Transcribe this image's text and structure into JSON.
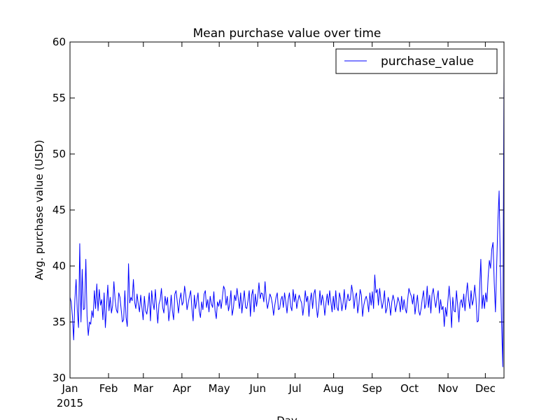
{
  "chart_data": {
    "type": "line",
    "title": "Mean purchase value over time",
    "xlabel": "Day",
    "ylabel": "Avg. purchase value (USD)",
    "x_start": "2015-01-01",
    "x_end": "2015-12-16",
    "xlim": [
      "2015-01-01",
      "2015-12-16"
    ],
    "ylim": [
      30,
      60
    ],
    "yticks": [
      "30",
      "35",
      "40",
      "45",
      "50",
      "55",
      "60"
    ],
    "xticks": [
      {
        "date": "2015-01-01",
        "label": "Jan"
      },
      {
        "date": "2015-02-01",
        "label": "Feb"
      },
      {
        "date": "2015-03-01",
        "label": "Mar"
      },
      {
        "date": "2015-04-01",
        "label": "Apr"
      },
      {
        "date": "2015-05-01",
        "label": "May"
      },
      {
        "date": "2015-06-01",
        "label": "Jun"
      },
      {
        "date": "2015-07-01",
        "label": "Jul"
      },
      {
        "date": "2015-08-01",
        "label": "Aug"
      },
      {
        "date": "2015-09-01",
        "label": "Sep"
      },
      {
        "date": "2015-10-01",
        "label": "Oct"
      },
      {
        "date": "2015-11-01",
        "label": "Nov"
      },
      {
        "date": "2015-12-01",
        "label": "Dec"
      }
    ],
    "year_label": "2015",
    "grid": false,
    "legend_position": "top-right",
    "series": [
      {
        "name": "purchase_value",
        "color": "#0000ff",
        "values": [
          37.2,
          36.8,
          35.5,
          33.4,
          37.0,
          38.8,
          36.0,
          34.5,
          42.0,
          35.0,
          39.7,
          36.1,
          36.2,
          40.6,
          35.5,
          33.8,
          35.0,
          34.8,
          36.0,
          35.4,
          37.8,
          36.2,
          38.4,
          36.0,
          37.9,
          36.5,
          37.0,
          35.2,
          37.6,
          34.5,
          36.4,
          38.3,
          36.0,
          37.2,
          35.8,
          36.5,
          38.6,
          37.0,
          36.1,
          35.8,
          37.6,
          37.2,
          36.1,
          35.0,
          35.2,
          37.8,
          35.4,
          34.6,
          40.2,
          36.7,
          37.2,
          36.9,
          38.8,
          36.8,
          36.2,
          37.5,
          36.6,
          35.9,
          37.4,
          36.3,
          35.2,
          37.3,
          36.0,
          35.7,
          36.5,
          37.6,
          35.1,
          37.8,
          36.7,
          36.1,
          37.9,
          36.3,
          34.9,
          36.6,
          37.0,
          38.0,
          36.3,
          35.8,
          37.3,
          36.5,
          37.2,
          35.1,
          36.0,
          37.4,
          36.0,
          35.2,
          37.5,
          37.8,
          36.8,
          35.8,
          37.0,
          37.6,
          36.5,
          36.8,
          38.2,
          37.4,
          36.1,
          36.7,
          37.3,
          37.8,
          36.2,
          35.1,
          37.4,
          36.2,
          36.9,
          37.6,
          36.0,
          35.4,
          36.8,
          36.1,
          37.5,
          37.8,
          36.3,
          37.0,
          35.9,
          37.3,
          36.6,
          36.3,
          37.7,
          36.0,
          35.3,
          36.8,
          36.4,
          37.0,
          36.2,
          37.2,
          38.2,
          37.9,
          36.5,
          37.3,
          36.0,
          36.6,
          37.8,
          35.6,
          36.2,
          37.4,
          36.9,
          38.0,
          37.1,
          36.2,
          37.6,
          35.8,
          36.9,
          37.8,
          36.3,
          36.2,
          36.9,
          37.8,
          35.5,
          37.4,
          37.9,
          35.9,
          37.5,
          36.4,
          37.2,
          38.5,
          37.1,
          37.6,
          37.5,
          36.8,
          38.6,
          37.0,
          36.2,
          36.8,
          37.5,
          37.2,
          36.6,
          35.6,
          36.5,
          37.2,
          37.6,
          36.1,
          36.2,
          37.0,
          37.3,
          36.3,
          37.6,
          36.8,
          35.8,
          37.0,
          37.6,
          36.4,
          36.0,
          37.9,
          36.8,
          37.5,
          36.2,
          36.9,
          37.4,
          37.0,
          36.7,
          35.6,
          36.5,
          37.8,
          36.8,
          37.3,
          35.5,
          36.9,
          37.6,
          36.2,
          37.5,
          37.9,
          36.5,
          35.4,
          36.3,
          37.8,
          36.5,
          37.4,
          36.8,
          35.6,
          36.7,
          37.5,
          36.5,
          37.8,
          36.8,
          35.9,
          37.3,
          36.1,
          37.8,
          36.3,
          36.0,
          37.6,
          37.1,
          36.0,
          36.7,
          37.9,
          36.1,
          36.8,
          37.5,
          36.9,
          37.0,
          38.3,
          37.6,
          36.2,
          37.3,
          37.6,
          35.8,
          36.6,
          37.9,
          37.4,
          35.5,
          36.5,
          37.0,
          37.3,
          36.8,
          35.9,
          37.6,
          36.5,
          37.7,
          36.2,
          39.2,
          37.6,
          37.9,
          36.5,
          38.0,
          37.0,
          36.2,
          36.8,
          37.8,
          35.8,
          36.2,
          37.2,
          36.7,
          35.6,
          36.8,
          37.4,
          36.9,
          35.9,
          36.5,
          37.2,
          36.8,
          35.9,
          37.3,
          36.1,
          37.0,
          36.2,
          35.8,
          37.0,
          38.0,
          37.6,
          37.3,
          36.6,
          37.5,
          35.7,
          36.6,
          37.4,
          36.0,
          35.6,
          36.2,
          37.1,
          37.8,
          36.2,
          36.6,
          38.2,
          36.3,
          37.4,
          35.8,
          37.5,
          38.0,
          37.0,
          36.3,
          37.1,
          37.8,
          35.8,
          37.0,
          36.1,
          36.4,
          34.6,
          36.3,
          35.5,
          36.9,
          38.2,
          36.8,
          34.5,
          37.2,
          36.0,
          35.9,
          37.8,
          36.5,
          35.0,
          36.7,
          37.0,
          36.3,
          37.5,
          36.0,
          37.4,
          38.5,
          37.0,
          36.2,
          37.8,
          36.5,
          37.0,
          38.3,
          37.1,
          35.0,
          35.1,
          38.0,
          40.6,
          36.2,
          37.4,
          36.2,
          37.6,
          36.8,
          39.0,
          40.5,
          39.8,
          41.5,
          42.1,
          38.5,
          35.9,
          40.0,
          44.0,
          46.7,
          40.0,
          35.0,
          31.0,
          57.0
        ]
      }
    ]
  }
}
